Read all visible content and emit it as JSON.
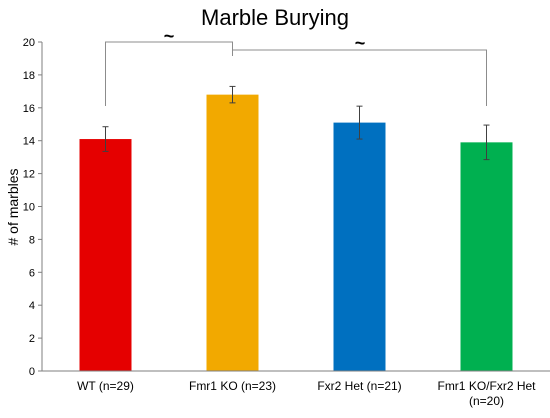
{
  "chart_data": {
    "type": "bar",
    "title": "Marble Burying",
    "xlabel": "",
    "ylabel": "# of marbles",
    "ylim": [
      0,
      20
    ],
    "yticks": [
      0,
      2,
      4,
      6,
      8,
      10,
      12,
      14,
      16,
      18,
      20
    ],
    "grid": false,
    "categories": [
      {
        "lines": [
          "WT (n=29)"
        ]
      },
      {
        "lines": [
          "Fmr1 KO (n=23)"
        ]
      },
      {
        "lines": [
          "Fxr2 Het (n=21)"
        ]
      },
      {
        "lines": [
          "Fmr1 KO/Fxr2 Het",
          "(n=20)"
        ]
      }
    ],
    "values": [
      14.1,
      16.8,
      15.1,
      13.9
    ],
    "errors": [
      0.75,
      0.5,
      1.0,
      1.05
    ],
    "colors": [
      "#e50000",
      "#f2a900",
      "#0070c0",
      "#00b050"
    ],
    "significance": [
      {
        "from": 0,
        "to": 1,
        "label": "~"
      },
      {
        "from": 1,
        "to": 3,
        "label": "~"
      }
    ]
  }
}
